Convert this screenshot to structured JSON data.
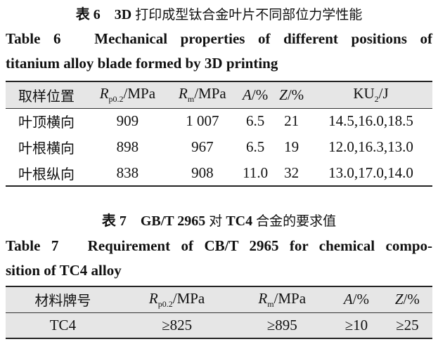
{
  "table6": {
    "title_num": "表 6　3D",
    "title_zh": "打印成型钛合金叶片不同部位力学性能",
    "caption": "Table 6　Mechanical properties of different positions of",
    "caption2": "titanium alloy blade formed by 3D printing",
    "headers": [
      {
        "sym": "取样位置",
        "sub": "",
        "unit": ""
      },
      {
        "sym": "R",
        "sub": "p0.2",
        "unit": "/MPa"
      },
      {
        "sym": "R",
        "sub": "m",
        "unit": "/MPa"
      },
      {
        "sym": "A",
        "sub": "",
        "unit": "/%"
      },
      {
        "sym": "Z",
        "sub": "",
        "unit": "/%"
      },
      {
        "sym": "KU",
        "sub": "2",
        "unit": "/J"
      }
    ],
    "rows": [
      [
        "叶顶横向",
        "909",
        "1 007",
        "6.5",
        "21",
        "14.5,16.0,18.5"
      ],
      [
        "叶根横向",
        "898",
        "967",
        "6.5",
        "19",
        "12.0,16.3,13.0"
      ],
      [
        "叶根纵向",
        "838",
        "908",
        "11.0",
        "32",
        "13.0,17.0,14.0"
      ]
    ]
  },
  "table7": {
    "title_num": "表 7　GB/T 2965",
    "title_zh": "对",
    "title_mid": "TC4",
    "title_zh2": "合金的要求值",
    "caption": "Table 7　Requirement of CB/T 2965 for chemical compo-",
    "caption2": "sition of TC4 alloy",
    "headers": [
      {
        "sym": "材料牌号",
        "sub": "",
        "unit": ""
      },
      {
        "sym": "R",
        "sub": "p0.2",
        "unit": "/MPa"
      },
      {
        "sym": "R",
        "sub": "m",
        "unit": "/MPa"
      },
      {
        "sym": "A",
        "sub": "",
        "unit": "/%"
      },
      {
        "sym": "Z",
        "sub": "",
        "unit": "/%"
      }
    ],
    "rows": [
      [
        "TC4",
        "≥825",
        "≥895",
        "≥10",
        "≥25"
      ]
    ]
  }
}
